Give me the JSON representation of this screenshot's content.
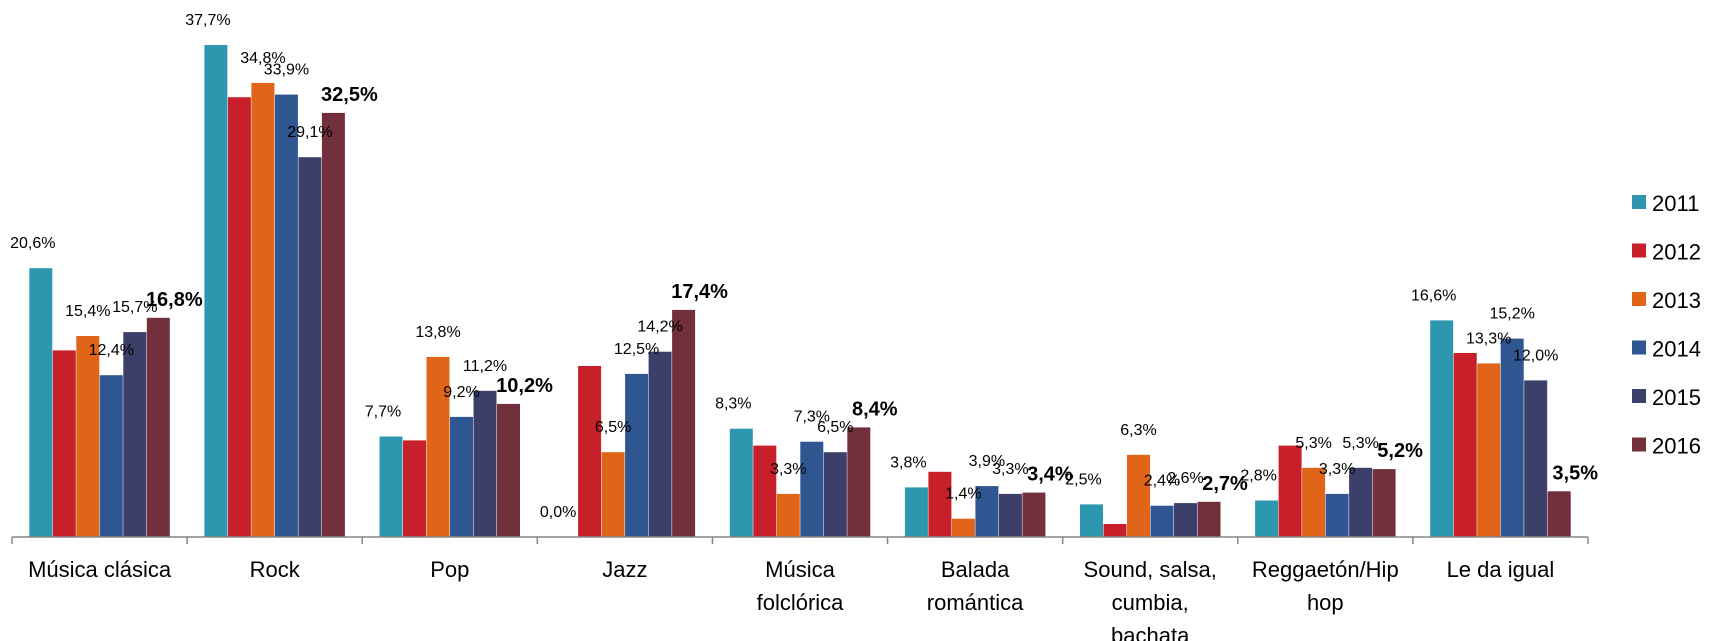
{
  "chart_data": {
    "type": "bar",
    "title": "",
    "xlabel": "",
    "ylabel": "",
    "ylim": [
      0,
      40
    ],
    "grid": false,
    "legend_position": "right",
    "categories": [
      [
        "Música clásica"
      ],
      [
        "Rock"
      ],
      [
        "Pop"
      ],
      [
        "Jazz"
      ],
      [
        "Música",
        "folclórica"
      ],
      [
        "Balada",
        "romántica"
      ],
      [
        "Sound, salsa,",
        "cumbia,",
        "bachata"
      ],
      [
        "Reggaetón/Hip",
        "hop"
      ],
      [
        "Le da igual"
      ]
    ],
    "series": [
      {
        "name": "2011",
        "color": "#2E97B0",
        "values": [
          20.6,
          37.7,
          7.7,
          0.0,
          8.3,
          3.8,
          2.5,
          2.8,
          16.6
        ],
        "labels": [
          "20,6%",
          "37,7%",
          "7,7%",
          "0,0%",
          "8,3%",
          "3,8%",
          "2,5%",
          "2,8%",
          "16,6%"
        ]
      },
      {
        "name": "2012",
        "color": "#C8202A",
        "values": [
          14.3,
          33.7,
          7.4,
          13.1,
          7.0,
          5.0,
          1.0,
          7.0,
          14.1
        ],
        "labels": []
      },
      {
        "name": "2013",
        "color": "#E06519",
        "values": [
          15.4,
          34.8,
          13.8,
          6.5,
          3.3,
          1.4,
          6.3,
          5.3,
          13.3
        ],
        "labels": [
          "15,4%",
          "34,8%",
          "13,8%",
          "6,5%",
          "3,3%",
          "1,4%",
          "6,3%",
          "5,3%",
          "13,3%"
        ]
      },
      {
        "name": "2014",
        "color": "#2F5690",
        "values": [
          12.4,
          33.9,
          9.2,
          12.5,
          7.3,
          3.9,
          2.4,
          3.3,
          15.2
        ],
        "labels": [
          "12,4%",
          "33,9%",
          "9,2%",
          "12,5%",
          "7,3%",
          "3,9%",
          "2,4%",
          "3,3%",
          "15,2%"
        ]
      },
      {
        "name": "2015",
        "color": "#3C3F69",
        "values": [
          15.7,
          29.1,
          11.2,
          14.2,
          6.5,
          3.3,
          2.6,
          5.3,
          12.0
        ],
        "labels": [
          "15,7%",
          "29,1%",
          "11,2%",
          "14,2%",
          "6,5%",
          "3,3%",
          "2,6%",
          "5,3%",
          "12,0%"
        ]
      },
      {
        "name": "2016",
        "color": "#722F3C",
        "values": [
          16.8,
          32.5,
          10.2,
          17.4,
          8.4,
          3.4,
          2.7,
          5.2,
          3.5
        ],
        "labels": [
          "16,8%",
          "32,5%",
          "10,2%",
          "17,4%",
          "8,4%",
          "3,4%",
          "2,7%",
          "5,2%",
          "3,5%"
        ],
        "bold_labels": true
      }
    ]
  }
}
